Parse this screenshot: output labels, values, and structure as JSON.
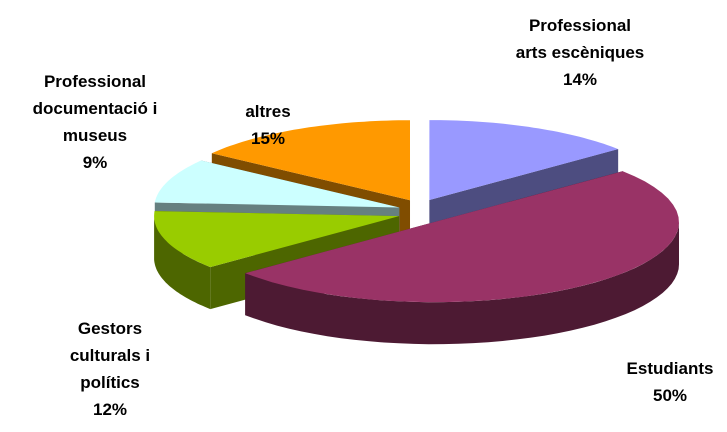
{
  "chart_data": {
    "type": "pie3d",
    "categories": [
      "Professional arts escèniques",
      "Estudiants",
      "Gestors culturals i polítics",
      "Professional documentació i museus",
      "altres"
    ],
    "values": [
      14,
      50,
      12,
      9,
      15
    ],
    "value_labels": [
      "14%",
      "50%",
      "12%",
      "9%",
      "15%"
    ],
    "colors": [
      "#9999ff",
      "#993366",
      "#99cc00",
      "#ccffff",
      "#ff9900"
    ]
  }
}
